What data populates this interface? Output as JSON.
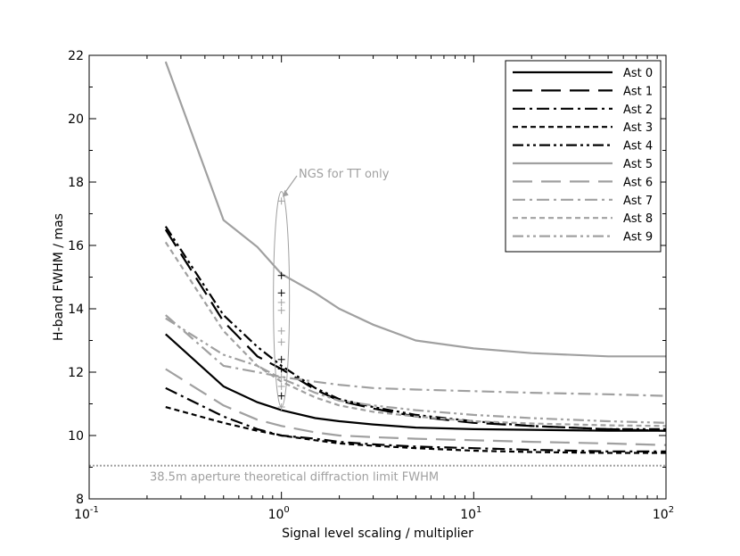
{
  "chart_data": {
    "type": "line",
    "title": "",
    "xlabel": "Signal level scaling / multiplier",
    "ylabel": "H-band FWHM / mas",
    "xscale": "log",
    "xlim": [
      0.1,
      100
    ],
    "ylim": [
      8,
      22
    ],
    "x_ticks": [
      {
        "value": 0.1,
        "base": "10",
        "exp": "-1"
      },
      {
        "value": 1,
        "base": "10",
        "exp": "0"
      },
      {
        "value": 10,
        "base": "10",
        "exp": "1"
      },
      {
        "value": 100,
        "base": "10",
        "exp": "2"
      }
    ],
    "y_ticks": [
      "8",
      "10",
      "12",
      "14",
      "16",
      "18",
      "20",
      "22"
    ],
    "legend_position": "top-right",
    "grid": false,
    "series": [
      {
        "name": "Ast 0",
        "color": "#000000",
        "dash": "solid",
        "x": [
          0.25,
          0.5,
          0.75,
          1,
          1.5,
          2,
          3,
          5,
          10,
          20,
          50,
          100
        ],
        "y": [
          13.2,
          11.55,
          11.05,
          10.8,
          10.55,
          10.45,
          10.35,
          10.25,
          10.2,
          10.18,
          10.15,
          10.15
        ]
      },
      {
        "name": "Ast 1",
        "color": "#000000",
        "dash": "long",
        "x": [
          0.25,
          0.5,
          0.75,
          1,
          1.5,
          2,
          3,
          5,
          10,
          20,
          50,
          100
        ],
        "y": [
          16.5,
          13.6,
          12.5,
          12.1,
          11.45,
          11.1,
          10.85,
          10.6,
          10.4,
          10.3,
          10.2,
          10.15
        ]
      },
      {
        "name": "Ast 2",
        "color": "#000000",
        "dash": "dashdot",
        "x": [
          0.25,
          0.5,
          0.75,
          1,
          1.5,
          2,
          3,
          5,
          10,
          20,
          50,
          100
        ],
        "y": [
          11.5,
          10.6,
          10.2,
          10.0,
          9.9,
          9.8,
          9.72,
          9.65,
          9.6,
          9.55,
          9.5,
          9.5
        ]
      },
      {
        "name": "Ast 3",
        "color": "#000000",
        "dash": "dashed",
        "x": [
          0.25,
          0.5,
          0.75,
          1,
          1.5,
          2,
          3,
          5,
          10,
          20,
          50,
          100
        ],
        "y": [
          10.9,
          10.4,
          10.15,
          10.0,
          9.85,
          9.75,
          9.68,
          9.6,
          9.52,
          9.48,
          9.45,
          9.45
        ]
      },
      {
        "name": "Ast 4",
        "color": "#000000",
        "dash": "dashdotdot",
        "x": [
          0.25,
          0.5,
          0.75,
          1,
          1.5,
          2,
          3,
          5,
          10,
          20,
          50,
          100
        ],
        "y": [
          16.6,
          13.8,
          12.8,
          12.2,
          11.5,
          11.15,
          10.9,
          10.65,
          10.45,
          10.3,
          10.2,
          10.2
        ]
      },
      {
        "name": "Ast 5",
        "color": "#a0a0a0",
        "dash": "solid",
        "x": [
          0.25,
          0.5,
          0.75,
          1,
          1.5,
          2,
          3,
          5,
          10,
          20,
          50,
          100
        ],
        "y": [
          21.8,
          16.8,
          15.95,
          15.1,
          14.5,
          14.0,
          13.5,
          13.0,
          12.75,
          12.6,
          12.5,
          12.5
        ]
      },
      {
        "name": "Ast 6",
        "color": "#a0a0a0",
        "dash": "long",
        "x": [
          0.25,
          0.5,
          0.75,
          1,
          1.5,
          2,
          3,
          5,
          10,
          20,
          50,
          100
        ],
        "y": [
          12.1,
          10.95,
          10.5,
          10.3,
          10.1,
          10.0,
          9.95,
          9.9,
          9.85,
          9.8,
          9.75,
          9.7
        ]
      },
      {
        "name": "Ast 7",
        "color": "#a0a0a0",
        "dash": "dashdot",
        "x": [
          0.25,
          0.5,
          0.75,
          1,
          1.5,
          2,
          3,
          5,
          10,
          20,
          50,
          100
        ],
        "y": [
          13.8,
          12.2,
          12.0,
          11.85,
          11.7,
          11.6,
          11.5,
          11.45,
          11.4,
          11.35,
          11.3,
          11.25
        ]
      },
      {
        "name": "Ast 8",
        "color": "#a0a0a0",
        "dash": "dashed",
        "x": [
          0.25,
          0.5,
          0.75,
          1,
          1.5,
          2,
          3,
          5,
          10,
          20,
          50,
          100
        ],
        "y": [
          16.1,
          13.3,
          12.2,
          11.7,
          11.2,
          10.95,
          10.75,
          10.6,
          10.45,
          10.38,
          10.32,
          10.3
        ]
      },
      {
        "name": "Ast 9",
        "color": "#a0a0a0",
        "dash": "dashdotdot",
        "x": [
          0.25,
          0.5,
          0.75,
          1,
          1.5,
          2,
          3,
          5,
          10,
          20,
          50,
          100
        ],
        "y": [
          13.7,
          12.55,
          12.2,
          11.8,
          11.35,
          11.1,
          10.95,
          10.8,
          10.65,
          10.55,
          10.45,
          10.4
        ]
      }
    ],
    "ngs_points": {
      "color_black": "#000000",
      "color_gray": "#a0a0a0",
      "x": 1,
      "black_y": [
        15.05,
        14.5,
        12.4,
        12.1,
        11.25
      ],
      "gray_y": [
        17.4,
        14.2,
        13.95,
        13.3,
        12.95,
        11.85,
        11.55,
        10.9
      ]
    },
    "annotations": {
      "ngs_label": "NGS for TT only",
      "diffraction_label": "38.5m aperture theoretical diffraction limit FWHM",
      "diffraction_y": 9.05,
      "annotation_color": "#a0a0a0"
    }
  }
}
